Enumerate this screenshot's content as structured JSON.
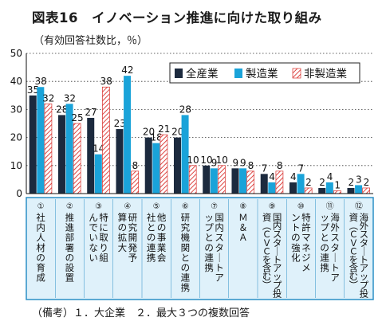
{
  "title": "図表16　イノベーション推進に向けた取り組み",
  "unit_label": "（有効回答社数比，％）",
  "footnote": "（備考）１．大企業　２．最大３つの複数回答",
  "colors": {
    "all": "#1c2a3e",
    "manufacturing": "#1aa3d9",
    "nonmanufacturing_stripe": "#d9322e",
    "axis_band": "#dff1fa",
    "axis_band_border": "#2b8fc6"
  },
  "chart_data": {
    "type": "bar",
    "title": "イノベーション推進に向けた取り組み",
    "ylabel": "（有効回答社数比，％）",
    "ylim": [
      0,
      50
    ],
    "yticks": [
      0,
      10,
      20,
      30,
      40,
      50
    ],
    "grid": "horizontal-dotted",
    "legend_position": "top-right",
    "categories": [
      {
        "num": "①",
        "label": "社内人材の育成"
      },
      {
        "num": "②",
        "label": "推進部署の設置"
      },
      {
        "num": "③",
        "label": "特に取り組んでいない"
      },
      {
        "num": "④",
        "label": "研究開発予算の拡大"
      },
      {
        "num": "⑤",
        "label": "他の事業会社との連携"
      },
      {
        "num": "⑥",
        "label": "研究機関との連携"
      },
      {
        "num": "⑦",
        "label": "国内スタートアップとの連携"
      },
      {
        "num": "⑧",
        "label": "Ｍ＆Ａ"
      },
      {
        "num": "⑨",
        "label": "国内スタートアップ投資（ＣＶＣを含む）"
      },
      {
        "num": "⑩",
        "label": "特許マネジメントの強化"
      },
      {
        "num": "⑪",
        "label": "海外スタートアップとの連携"
      },
      {
        "num": "⑫",
        "label": "海外スタートアップ投資（ＣＶＣを含む）"
      }
    ],
    "series": [
      {
        "name": "全産業",
        "values": [
          35,
          28,
          27,
          23,
          20,
          20,
          10,
          9,
          7,
          4,
          2,
          2
        ]
      },
      {
        "name": "製造業",
        "values": [
          38,
          32,
          14,
          42,
          18,
          28,
          9,
          9,
          4,
          7,
          4,
          3
        ]
      },
      {
        "name": "非製造業",
        "values": [
          32,
          25,
          38,
          8,
          21,
          10,
          10,
          8,
          8,
          2,
          1,
          2
        ]
      }
    ]
  }
}
